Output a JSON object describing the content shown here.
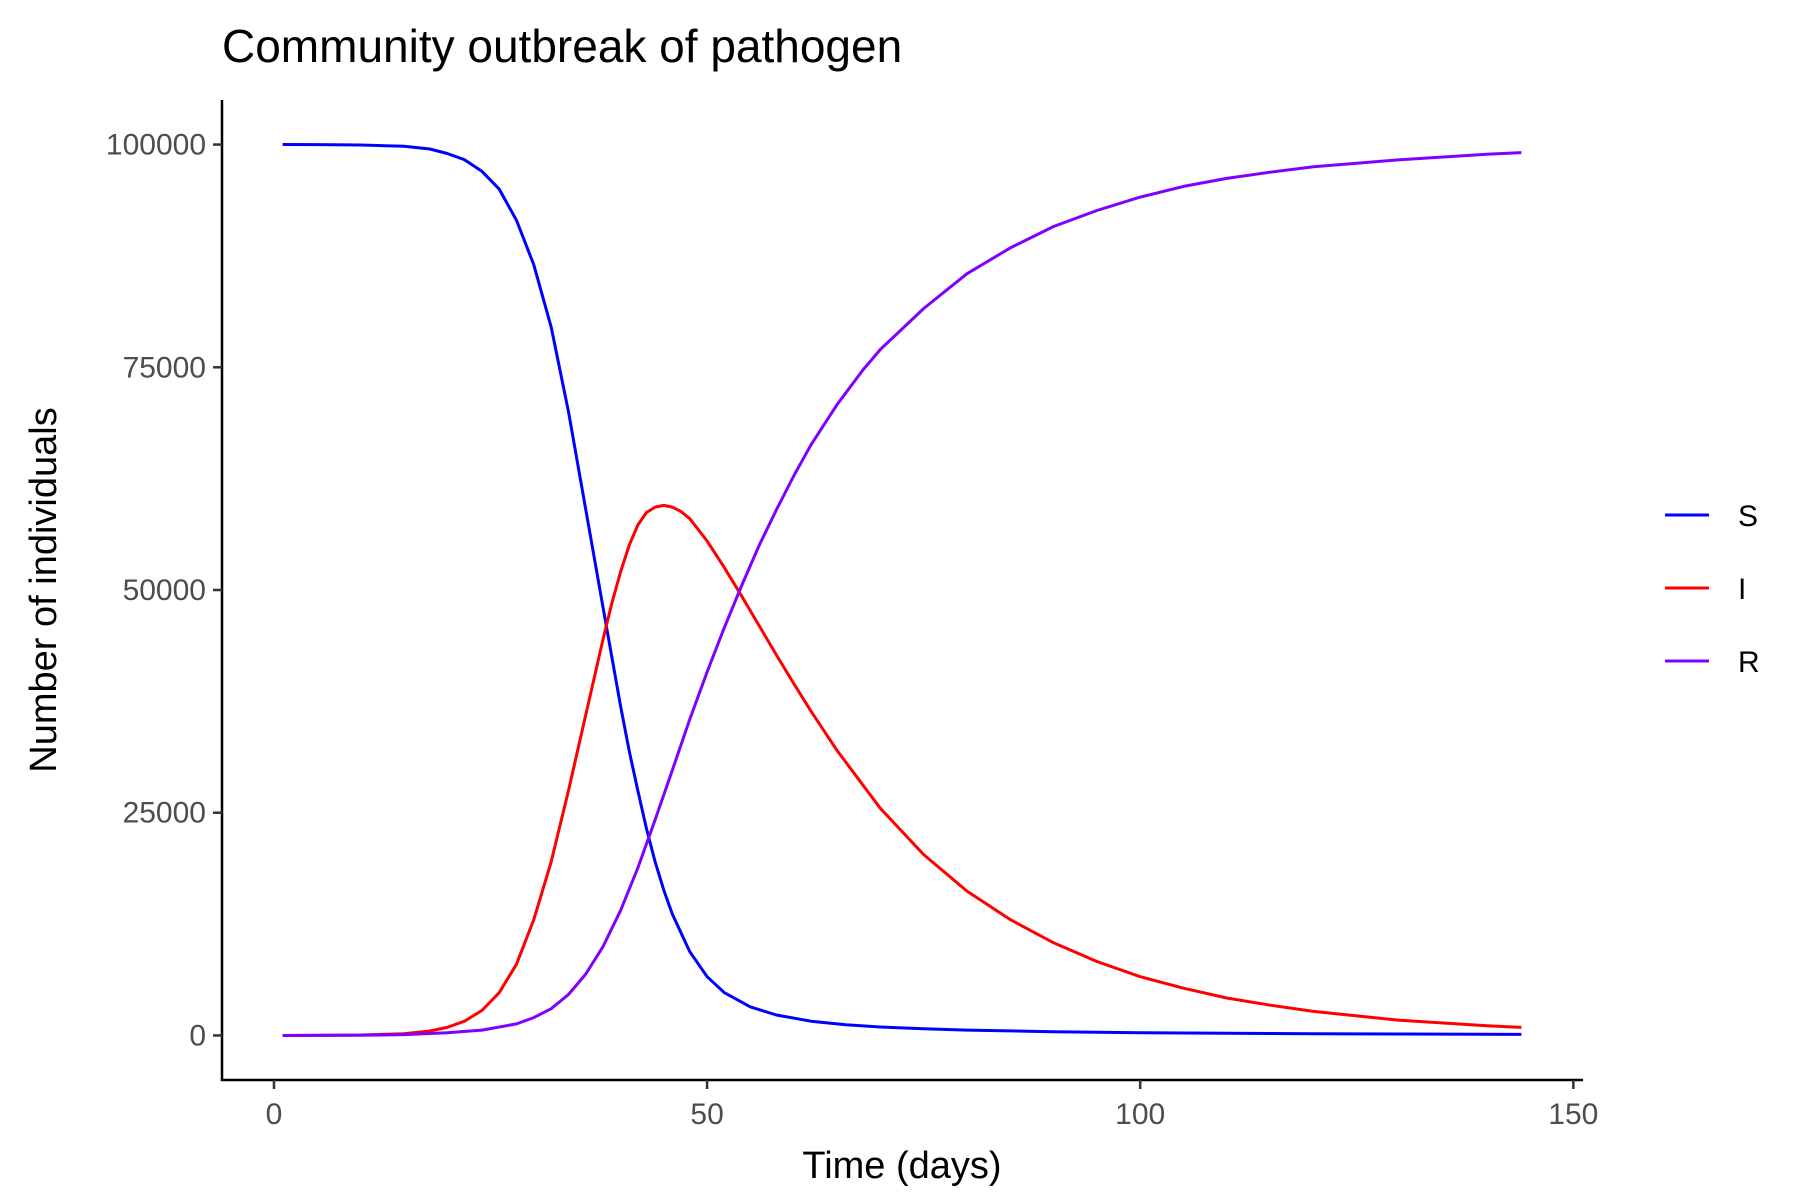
{
  "chart_data": {
    "type": "line",
    "title": "Community outbreak of pathogen",
    "xlabel": "Time (days)",
    "ylabel": "Number of individuals",
    "xlim": [
      -6,
      151
    ],
    "ylim": [
      -5000,
      105000
    ],
    "xticks": [
      0,
      50,
      100,
      150
    ],
    "yticks": [
      0,
      25000,
      50000,
      75000,
      100000
    ],
    "grid": false,
    "legend_position": "right",
    "series": [
      {
        "name": "S",
        "color": "#0000ff",
        "x": [
          1,
          5,
          10,
          15,
          18,
          20,
          22,
          24,
          26,
          28,
          30,
          32,
          34,
          36,
          38,
          39,
          40,
          41,
          42,
          43,
          44,
          45,
          46,
          48,
          50,
          52,
          55,
          58,
          62,
          66,
          70,
          75,
          80,
          90,
          100,
          110,
          120,
          130,
          144
        ],
        "values": [
          100000,
          99990,
          99950,
          99800,
          99500,
          99000,
          98300,
          97000,
          95000,
          91500,
          86500,
          79500,
          70000,
          59000,
          48000,
          42500,
          37000,
          32000,
          27500,
          23200,
          19500,
          16300,
          13600,
          9400,
          6600,
          4800,
          3200,
          2300,
          1600,
          1200,
          950,
          750,
          600,
          420,
          310,
          240,
          190,
          160,
          120
        ]
      },
      {
        "name": "I",
        "color": "#ff0000",
        "x": [
          1,
          10,
          15,
          18,
          20,
          22,
          24,
          26,
          28,
          30,
          32,
          34,
          36,
          38,
          39,
          40,
          41,
          42,
          43,
          44,
          45,
          46,
          47,
          48,
          50,
          52,
          54,
          56,
          58,
          60,
          62,
          65,
          70,
          75,
          80,
          85,
          90,
          95,
          100,
          105,
          110,
          115,
          120,
          125,
          130,
          135,
          140,
          144
        ],
        "values": [
          0,
          50,
          200,
          500,
          900,
          1600,
          2800,
          4800,
          8000,
          13000,
          19500,
          27500,
          36000,
          44500,
          48500,
          52000,
          55000,
          57300,
          58700,
          59300,
          59500,
          59300,
          58800,
          58000,
          55500,
          52500,
          49300,
          46000,
          42700,
          39500,
          36400,
          32000,
          25500,
          20300,
          16200,
          13000,
          10400,
          8300,
          6600,
          5300,
          4200,
          3400,
          2700,
          2200,
          1700,
          1400,
          1100,
          900
        ]
      },
      {
        "name": "R",
        "color": "#8000ff",
        "x": [
          1,
          10,
          15,
          20,
          24,
          28,
          30,
          32,
          34,
          36,
          38,
          40,
          42,
          44,
          46,
          48,
          50,
          52,
          54,
          56,
          58,
          60,
          62,
          65,
          68,
          70,
          75,
          80,
          85,
          90,
          95,
          100,
          105,
          110,
          115,
          120,
          125,
          130,
          135,
          140,
          144
        ],
        "values": [
          0,
          20,
          100,
          300,
          600,
          1300,
          2000,
          3000,
          4600,
          6900,
          10000,
          14000,
          18800,
          24200,
          29800,
          35500,
          40800,
          45800,
          50500,
          55000,
          59000,
          62800,
          66300,
          70800,
          74700,
          77000,
          81600,
          85500,
          88400,
          90800,
          92600,
          94100,
          95300,
          96200,
          96900,
          97500,
          97900,
          98300,
          98600,
          98900,
          99100
        ]
      }
    ]
  }
}
